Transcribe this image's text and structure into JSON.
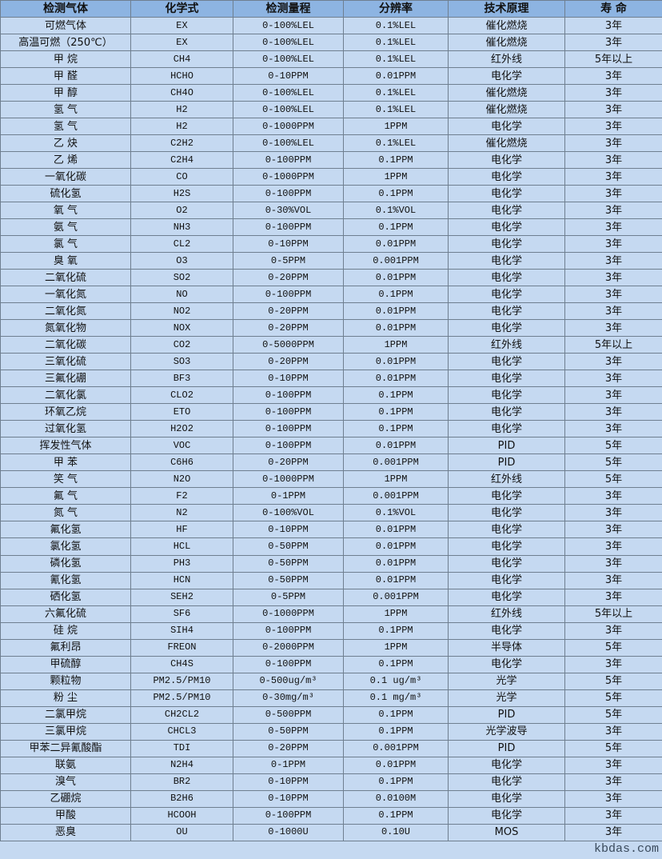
{
  "headers": [
    "检测气体",
    "化学式",
    "检测量程",
    "分辨率",
    "技术原理",
    "寿 命"
  ],
  "rows": [
    [
      "可燃气体",
      "EX",
      "0-100%LEL",
      "0.1%LEL",
      "催化燃烧",
      "3年"
    ],
    [
      "高温可燃（250℃）",
      "EX",
      "0-100%LEL",
      "0.1%LEL",
      "催化燃烧",
      "3年"
    ],
    [
      "甲 烷",
      "CH4",
      "0-100%LEL",
      "0.1%LEL",
      "红外线",
      "5年以上"
    ],
    [
      "甲 醛",
      "HCHO",
      "0-10PPM",
      "0.01PPM",
      "电化学",
      "3年"
    ],
    [
      "甲 醇",
      "CH4O",
      "0-100%LEL",
      "0.1%LEL",
      "催化燃烧",
      "3年"
    ],
    [
      "氢 气",
      "H2",
      "0-100%LEL",
      "0.1%LEL",
      "催化燃烧",
      "3年"
    ],
    [
      "氢 气",
      "H2",
      "0-1000PPM",
      "1PPM",
      "电化学",
      "3年"
    ],
    [
      "乙 炔",
      "C2H2",
      "0-100%LEL",
      "0.1%LEL",
      "催化燃烧",
      "3年"
    ],
    [
      "乙 烯",
      "C2H4",
      "0-100PPM",
      "0.1PPM",
      "电化学",
      "3年"
    ],
    [
      "一氧化碳",
      "CO",
      "0-1000PPM",
      "1PPM",
      "电化学",
      "3年"
    ],
    [
      "硫化氢",
      "H2S",
      "0-100PPM",
      "0.1PPM",
      "电化学",
      "3年"
    ],
    [
      "氧 气",
      "O2",
      "0-30%VOL",
      "0.1%VOL",
      "电化学",
      "3年"
    ],
    [
      "氨 气",
      "NH3",
      "0-100PPM",
      "0.1PPM",
      "电化学",
      "3年"
    ],
    [
      "氯 气",
      "CL2",
      "0-10PPM",
      "0.01PPM",
      "电化学",
      "3年"
    ],
    [
      "臭 氧",
      "O3",
      "0-5PPM",
      "0.001PPM",
      "电化学",
      "3年"
    ],
    [
      "二氧化硫",
      "SO2",
      "0-20PPM",
      "0.01PPM",
      "电化学",
      "3年"
    ],
    [
      "一氧化氮",
      "NO",
      "0-100PPM",
      "0.1PPM",
      "电化学",
      "3年"
    ],
    [
      "二氧化氮",
      "NO2",
      "0-20PPM",
      "0.01PPM",
      "电化学",
      "3年"
    ],
    [
      "氮氧化物",
      "NOX",
      "0-20PPM",
      "0.01PPM",
      "电化学",
      "3年"
    ],
    [
      "二氧化碳",
      "CO2",
      "0-5000PPM",
      "1PPM",
      "红外线",
      "5年以上"
    ],
    [
      "三氧化硫",
      "SO3",
      "0-20PPM",
      "0.01PPM",
      "电化学",
      "3年"
    ],
    [
      "三氟化硼",
      "BF3",
      "0-10PPM",
      "0.01PPM",
      "电化学",
      "3年"
    ],
    [
      "二氧化氯",
      "CLO2",
      "0-100PPM",
      "0.1PPM",
      "电化学",
      "3年"
    ],
    [
      "环氧乙烷",
      "ETO",
      "0-100PPM",
      "0.1PPM",
      "电化学",
      "3年"
    ],
    [
      "过氧化氢",
      "H2O2",
      "0-100PPM",
      "0.1PPM",
      "电化学",
      "3年"
    ],
    [
      "挥发性气体",
      "VOC",
      "0-100PPM",
      "0.01PPM",
      "PID",
      "5年"
    ],
    [
      "甲 苯",
      "C6H6",
      "0-20PPM",
      "0.001PPM",
      "PID",
      "5年"
    ],
    [
      "笑 气",
      "N2O",
      "0-1000PPM",
      "1PPM",
      "红外线",
      "5年"
    ],
    [
      "氟 气",
      "F2",
      "0-1PPM",
      "0.001PPM",
      "电化学",
      "3年"
    ],
    [
      "氮 气",
      "N2",
      "0-100%VOL",
      "0.1%VOL",
      "电化学",
      "3年"
    ],
    [
      "氟化氢",
      "HF",
      "0-10PPM",
      "0.01PPM",
      "电化学",
      "3年"
    ],
    [
      "氯化氢",
      "HCL",
      "0-50PPM",
      "0.01PPM",
      "电化学",
      "3年"
    ],
    [
      "磷化氢",
      "PH3",
      "0-50PPM",
      "0.01PPM",
      "电化学",
      "3年"
    ],
    [
      "氰化氢",
      "HCN",
      "0-50PPM",
      "0.01PPM",
      "电化学",
      "3年"
    ],
    [
      "硒化氢",
      "SEH2",
      "0-5PPM",
      "0.001PPM",
      "电化学",
      "3年"
    ],
    [
      "六氟化硫",
      "SF6",
      "0-1000PPM",
      "1PPM",
      "红外线",
      "5年以上"
    ],
    [
      "硅 烷",
      "SIH4",
      "0-100PPM",
      "0.1PPM",
      "电化学",
      "3年"
    ],
    [
      "氟利昂",
      "FREON",
      "0-2000PPM",
      "1PPM",
      "半导体",
      "5年"
    ],
    [
      "甲硫醇",
      "CH4S",
      "0-100PPM",
      "0.1PPM",
      "电化学",
      "3年"
    ],
    [
      "颗粒物",
      "PM2.5/PM10",
      "0-500ug/m³",
      "0.1 ug/m³",
      "光学",
      "5年"
    ],
    [
      "粉 尘",
      "PM2.5/PM10",
      "0-30mg/m³",
      "0.1 mg/m³",
      "光学",
      "5年"
    ],
    [
      "二氯甲烷",
      "CH2CL2",
      "0-500PPM",
      "0.1PPM",
      "PID",
      "5年"
    ],
    [
      "三氯甲烷",
      "CHCL3",
      "0-50PPM",
      "0.1PPM",
      "光学波导",
      "3年"
    ],
    [
      "甲苯二异氰酸酯",
      "TDI",
      "0-20PPM",
      "0.001PPM",
      "PID",
      "5年"
    ],
    [
      "联氨",
      "N2H4",
      "0-1PPM",
      "0.01PPM",
      "电化学",
      "3年"
    ],
    [
      "溴气",
      "BR2",
      "0-10PPM",
      "0.1PPM",
      "电化学",
      "3年"
    ],
    [
      "乙硼烷",
      "B2H6",
      "0-10PPM",
      "0.0100M",
      "电化学",
      "3年"
    ],
    [
      "甲酸",
      "HCOOH",
      "0-100PPM",
      "0.1PPM",
      "电化学",
      "3年"
    ],
    [
      "恶臭",
      "OU",
      "0-1000U",
      "0.10U",
      "MOS",
      "3年"
    ]
  ],
  "watermark": "kbdas.com",
  "colors": {
    "header_bg": "#8db4e2",
    "row_bg": "#c5d9f1",
    "border": "#6f7f90"
  }
}
